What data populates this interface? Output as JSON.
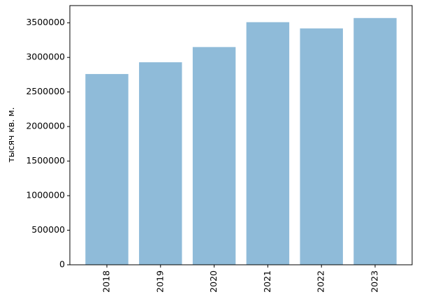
{
  "chart_data": {
    "type": "bar",
    "y_label": "тысяч кв. м.",
    "categories": [
      "2018",
      "2019",
      "2020",
      "2021",
      "2022",
      "2023"
    ],
    "values": [
      2760000,
      2930000,
      3150000,
      3510000,
      3420000,
      3570000
    ],
    "color": "#8fbbd9",
    "ylim": [
      0,
      3750000
    ],
    "yticks": [
      0,
      500000,
      1000000,
      1500000,
      2000000,
      2500000,
      3000000,
      3500000
    ],
    "grid": false
  }
}
